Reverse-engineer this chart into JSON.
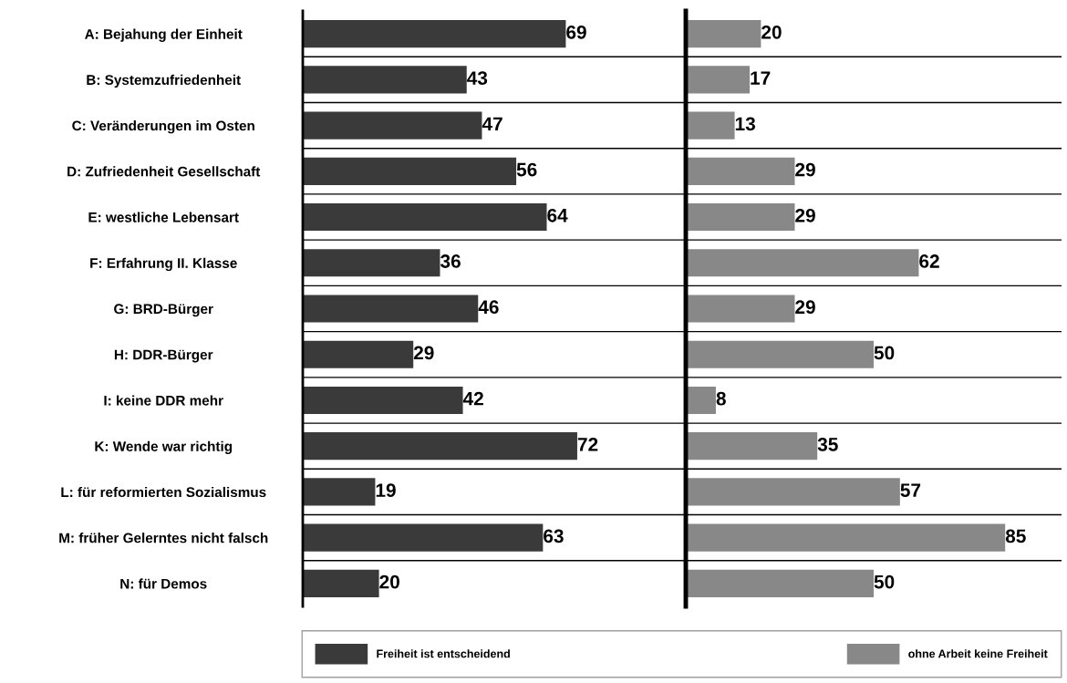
{
  "chart_data": [
    {
      "type": "bar",
      "orientation": "horizontal",
      "categories": [
        "A: Bejahung der Einheit",
        "B: Systemzufriedenheit",
        "C: Veränderungen im Osten",
        "D: Zufriedenheit Gesellschaft",
        "E: westliche Lebensart",
        "F: Erfahrung II. Klasse",
        "G: BRD-Bürger",
        "H: DDR-Bürger",
        "I: keine DDR mehr",
        "K: Wende war richtig",
        "L: für reformierten Sozialismus",
        "M: früher Gelerntes nicht falsch",
        "N: für Demos"
      ],
      "series": [
        {
          "name": "Freiheit ist entscheidend",
          "color": "#3a3a3a",
          "values": [
            69,
            43,
            47,
            56,
            64,
            36,
            46,
            29,
            42,
            72,
            19,
            63,
            20
          ]
        }
      ],
      "xlim": [
        0,
        100
      ],
      "data_labels": true,
      "grid": "y",
      "legend": "bottom",
      "tick_labels": "y"
    },
    {
      "type": "bar",
      "orientation": "horizontal",
      "categories": [
        null,
        null,
        null,
        null,
        null,
        null,
        null,
        null,
        null,
        null,
        null,
        null,
        null
      ],
      "series": [
        {
          "name": "ohne Arbeit keine Freiheit",
          "color": "#888888",
          "values": [
            20,
            17,
            13,
            29,
            29,
            62,
            29,
            50,
            8,
            35,
            57,
            85,
            50
          ]
        }
      ],
      "xlim": [
        0,
        100
      ],
      "data_labels": true,
      "grid": "y",
      "legend": "bottom",
      "tick_labels": false
    }
  ]
}
